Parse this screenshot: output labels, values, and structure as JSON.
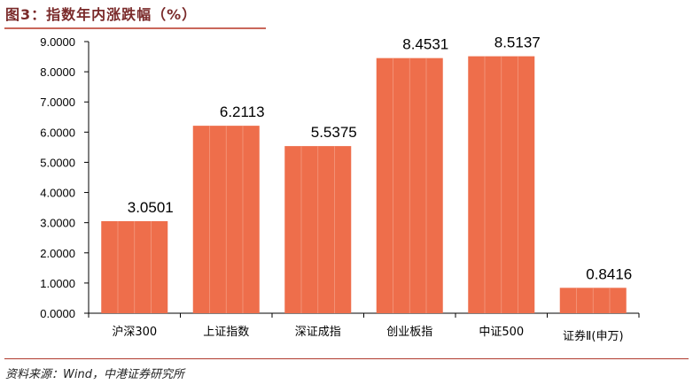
{
  "title": "图3：指数年内涨跌幅（%）",
  "source": "资料来源：Wind，中港证券研究所",
  "colors": {
    "bar": "#EE6E4B",
    "title": "#7a2a2a"
  },
  "chart_data": {
    "type": "bar",
    "title": "指数年内涨跌幅（%）",
    "categories": [
      "沪深300",
      "上证指数",
      "深证成指",
      "创业板指",
      "中证500",
      "证券Ⅱ(申万)"
    ],
    "values": [
      3.0501,
      6.2113,
      5.5375,
      8.4531,
      8.5137,
      0.8416
    ],
    "data_labels": [
      "3.0501",
      "6.2113",
      "5.5375",
      "8.4531",
      "8.5137",
      "0.8416"
    ],
    "ylim": [
      0,
      9
    ],
    "yticks": [
      "0.0000",
      "1.0000",
      "2.0000",
      "3.0000",
      "4.0000",
      "5.0000",
      "6.0000",
      "7.0000",
      "8.0000",
      "9.0000"
    ],
    "grid": false,
    "xlabel": "",
    "ylabel": ""
  }
}
